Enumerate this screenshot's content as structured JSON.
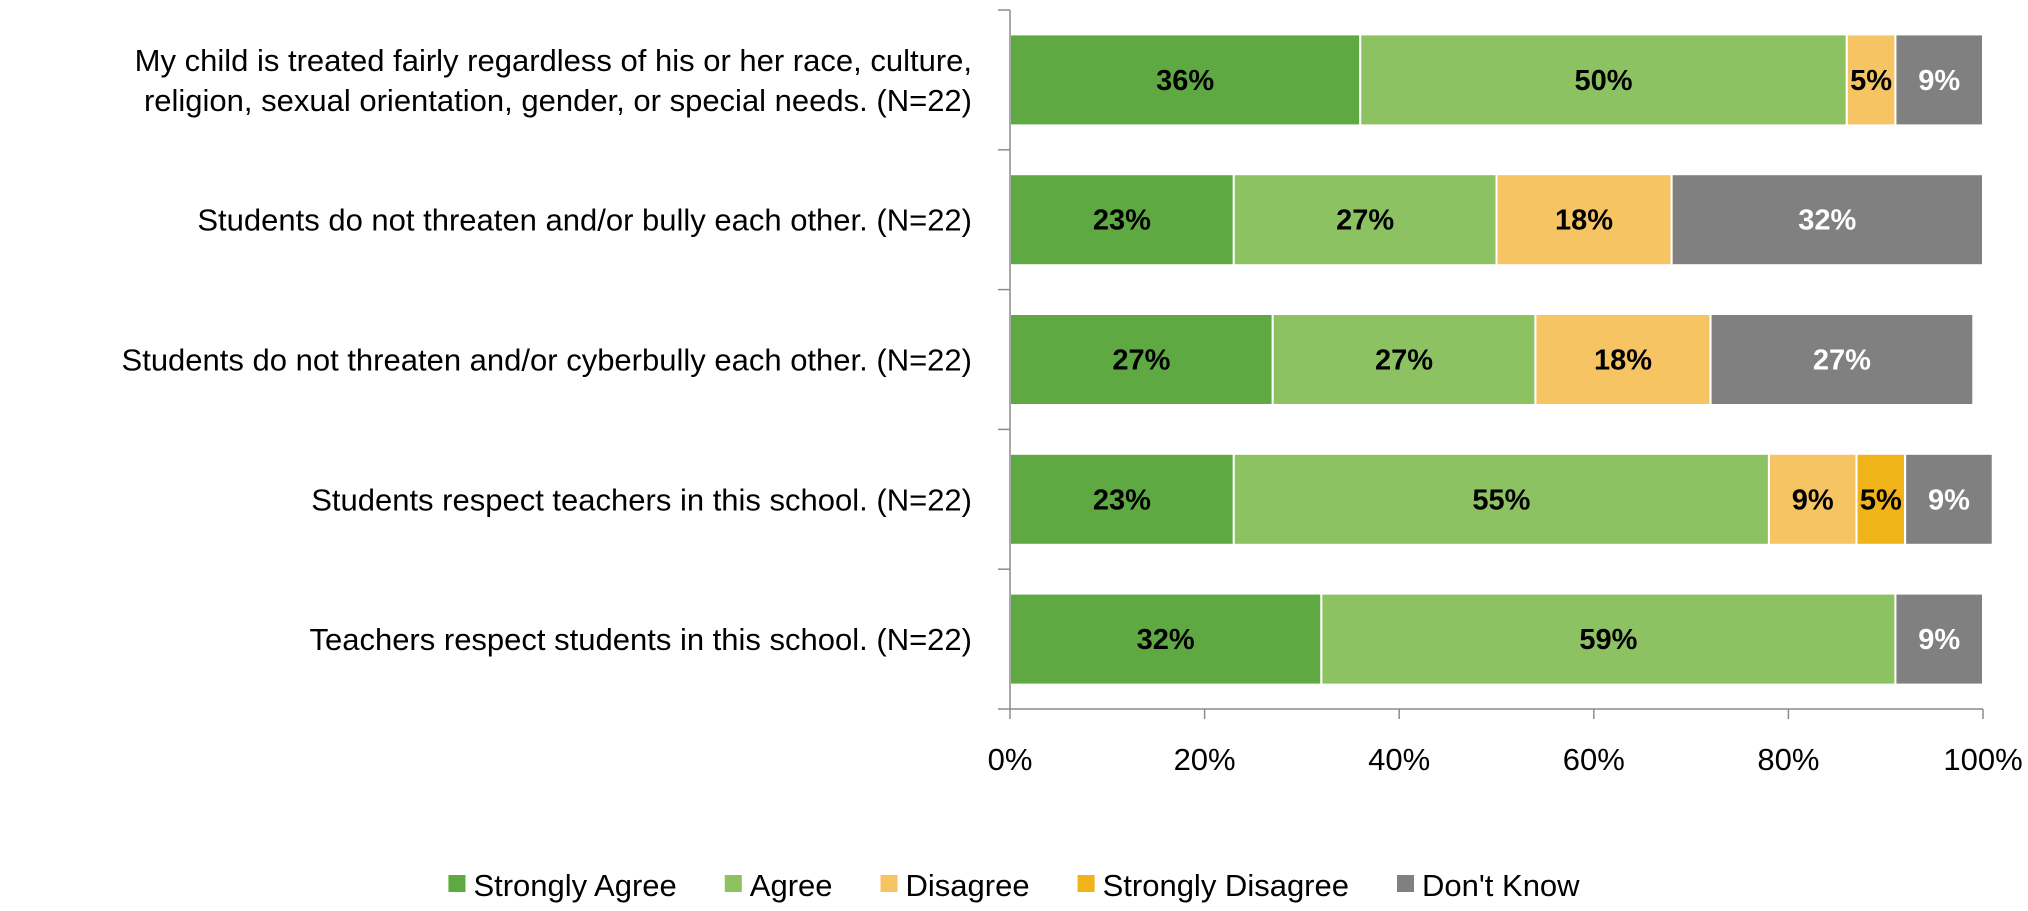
{
  "chart_data": {
    "type": "bar",
    "orientation": "horizontal",
    "stacked": true,
    "title": "",
    "xlabel": "",
    "ylabel": "",
    "xlim": [
      0,
      100
    ],
    "x_ticks": [
      "0%",
      "20%",
      "40%",
      "60%",
      "80%",
      "100%"
    ],
    "grid": false,
    "legend_position": "bottom",
    "categories": [
      [
        "My child is treated fairly regardless of his or her race, culture,",
        "religion, sexual orientation, gender, or special needs. (N=22)"
      ],
      [
        "Students do not threaten and/or bully each other. (N=22)"
      ],
      [
        "Students do not threaten and/or cyberbully each other. (N=22)"
      ],
      [
        "Students respect teachers in this school. (N=22)"
      ],
      [
        "Teachers respect students in this school. (N=22)"
      ]
    ],
    "series": [
      {
        "name": "Strongly Agree",
        "color": "#5fa943",
        "label_color": "#000000",
        "values": [
          36,
          23,
          27,
          23,
          32
        ]
      },
      {
        "name": "Agree",
        "color": "#8dc263",
        "label_color": "#000000",
        "values": [
          50,
          27,
          27,
          55,
          59
        ]
      },
      {
        "name": "Disagree",
        "color": "#f7c463",
        "label_color": "#000000",
        "values": [
          5,
          18,
          18,
          9,
          0
        ]
      },
      {
        "name": "Strongly Disagree",
        "color": "#f0b41a",
        "label_color": "#000000",
        "values": [
          0,
          0,
          0,
          5,
          0
        ]
      },
      {
        "name": "Don't Know",
        "color": "#808080",
        "label_color": "#ffffff",
        "values": [
          9,
          32,
          27,
          9,
          9
        ]
      }
    ]
  }
}
